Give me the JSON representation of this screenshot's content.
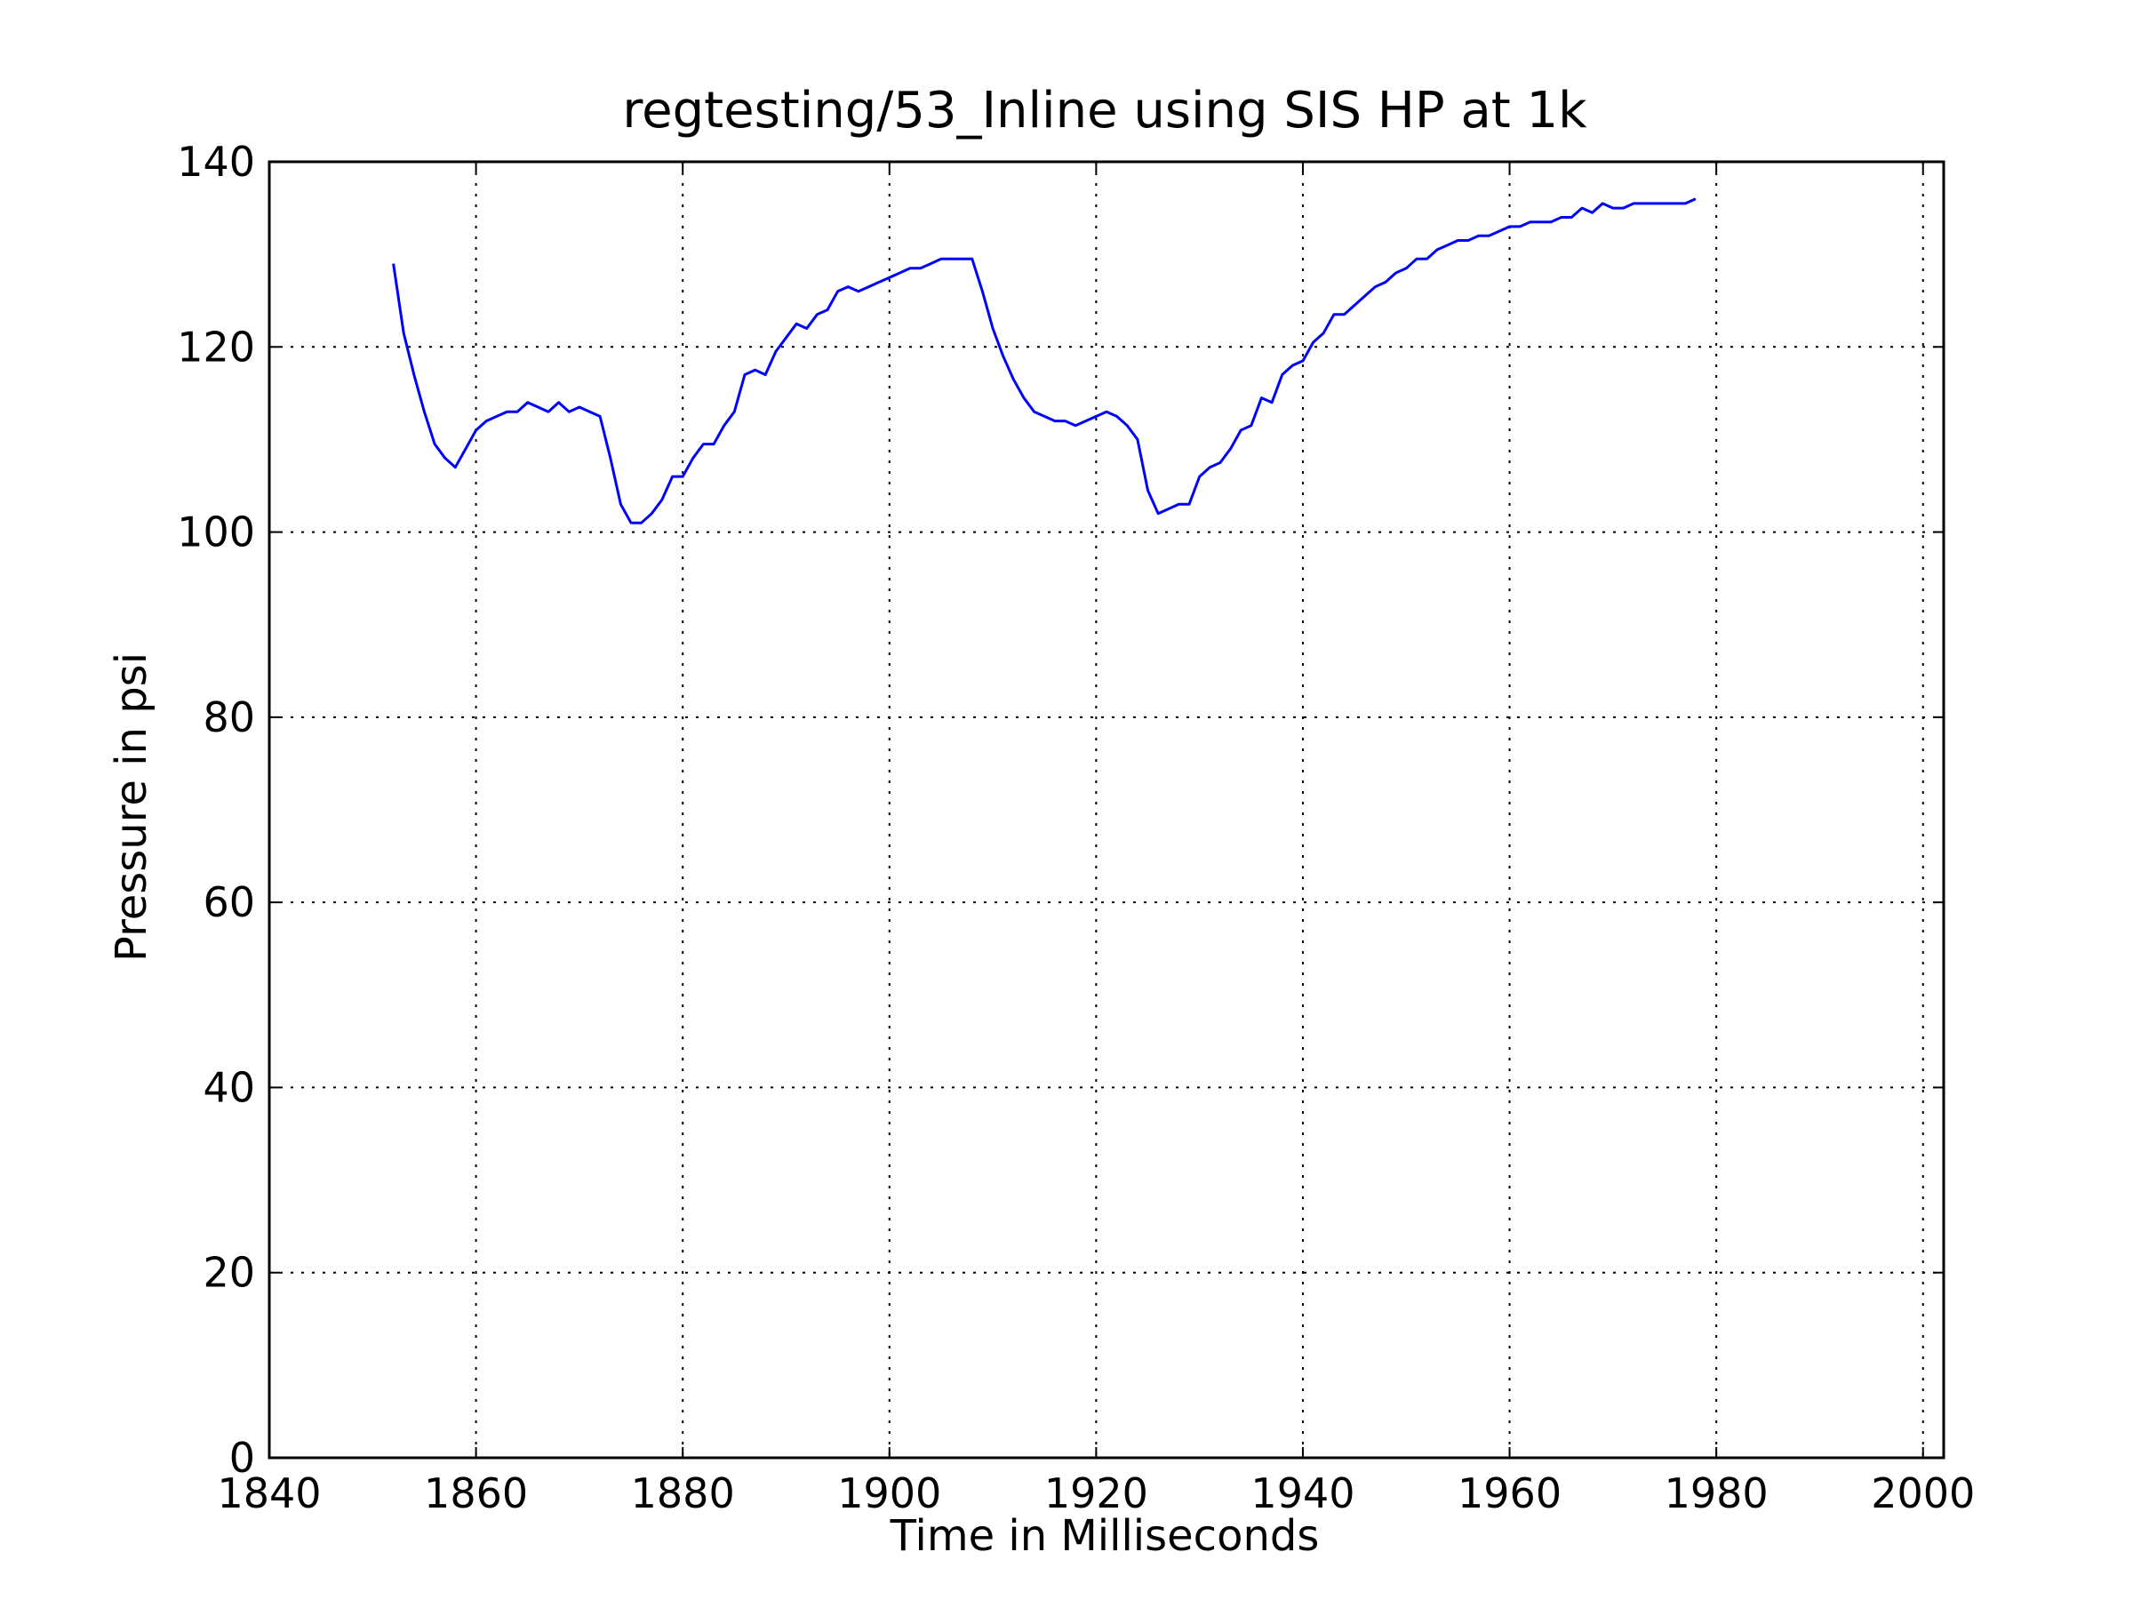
{
  "chart_data": {
    "type": "line",
    "title": "regtesting/53_Inline using SIS HP at 1k",
    "xlabel": "Time in Milliseconds",
    "ylabel": "Pressure in psi",
    "xlim": [
      1840,
      2002
    ],
    "ylim": [
      0,
      140
    ],
    "x_ticks": [
      1840,
      1860,
      1880,
      1900,
      1920,
      1940,
      1960,
      1980,
      2000
    ],
    "y_ticks": [
      0,
      20,
      40,
      60,
      80,
      100,
      120,
      140
    ],
    "grid": true,
    "line_color": "#0000ff",
    "series": [
      {
        "x": [
          1852,
          1853,
          1854,
          1855,
          1856,
          1857,
          1858,
          1859,
          1860,
          1861,
          1862,
          1863,
          1864,
          1865,
          1866,
          1867,
          1868,
          1869,
          1870,
          1871,
          1872,
          1873,
          1874,
          1875,
          1876,
          1877,
          1878,
          1879,
          1880,
          1881,
          1882,
          1883,
          1884,
          1885,
          1886,
          1887,
          1888,
          1889,
          1890,
          1891,
          1892,
          1893,
          1894,
          1895,
          1896,
          1897,
          1898,
          1899,
          1900,
          1901,
          1902,
          1903,
          1904,
          1905,
          1906,
          1907,
          1908,
          1909,
          1910,
          1911,
          1912,
          1913,
          1914,
          1915,
          1916,
          1917,
          1918,
          1919,
          1920,
          1921,
          1922,
          1923,
          1924,
          1925,
          1926,
          1927,
          1928,
          1929,
          1930,
          1931,
          1932,
          1933,
          1934,
          1935,
          1936,
          1937,
          1938,
          1939,
          1940,
          1941,
          1942,
          1943,
          1944,
          1945,
          1946,
          1947,
          1948,
          1949,
          1950,
          1951,
          1952,
          1953,
          1954,
          1955,
          1956,
          1957,
          1958,
          1959,
          1960,
          1961,
          1962,
          1963,
          1964,
          1965,
          1966,
          1967,
          1968,
          1969,
          1970,
          1971,
          1972,
          1973,
          1974,
          1975,
          1976,
          1977,
          1978
        ],
        "y": [
          129,
          121.5,
          117,
          113,
          109.5,
          108,
          107,
          109,
          111,
          112,
          112.5,
          113,
          113,
          114,
          113.5,
          113,
          114,
          113,
          113.5,
          113,
          112.5,
          108,
          103,
          101,
          101,
          102,
          103.5,
          106,
          106,
          108,
          109.5,
          109.5,
          111.5,
          113,
          117,
          117.5,
          117,
          119.5,
          121,
          122.5,
          122,
          123.5,
          124,
          126,
          126.5,
          126,
          126.5,
          127,
          127.5,
          128,
          128.5,
          128.5,
          129,
          129.5,
          129.5,
          129.5,
          129.5,
          126,
          122,
          119,
          116.5,
          114.5,
          113,
          112.5,
          112,
          112,
          111.5,
          112,
          112.5,
          113,
          112.5,
          111.5,
          110,
          104.5,
          102,
          102.5,
          103,
          103,
          106,
          107,
          107.5,
          109,
          111,
          111.5,
          114.5,
          114,
          117,
          118,
          118.5,
          120.5,
          121.5,
          123.5,
          123.5,
          124.5,
          125.5,
          126.5,
          127,
          128,
          128.5,
          129.5,
          129.5,
          130.5,
          131,
          131.5,
          131.5,
          132,
          132,
          132.5,
          133,
          133,
          133.5,
          133.5,
          133.5,
          134,
          134,
          135,
          134.5,
          135.5,
          135,
          135,
          135.5,
          135.5,
          135.5,
          135.5,
          135.5,
          135.5,
          136
        ]
      }
    ]
  }
}
